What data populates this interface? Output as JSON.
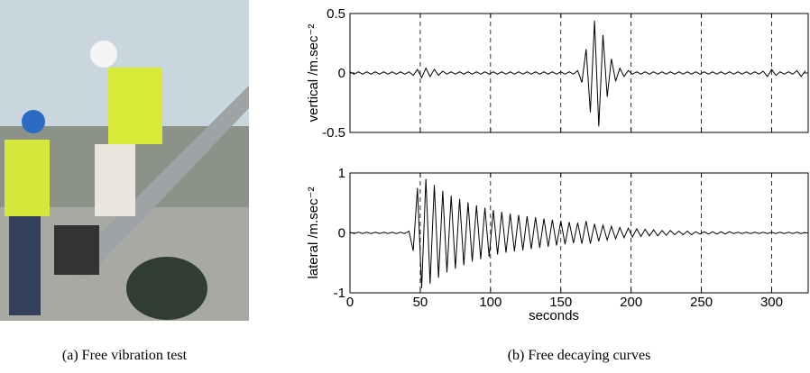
{
  "captions": [
    "(a) Free vibration test",
    "(b) Free decaying curves"
  ],
  "chart_data": [
    {
      "type": "line",
      "ylabel": "vertical /m.sec⁻²",
      "color": "#000000",
      "xlim": [
        0,
        326
      ],
      "ylim": [
        -0.5,
        0.5
      ],
      "yticks": [
        -0.5,
        0,
        0.5
      ],
      "xticks": [
        0,
        50,
        100,
        150,
        200,
        250,
        300
      ],
      "show_xtick_labels": false,
      "grid": true,
      "x": [
        0,
        3,
        6,
        9,
        12,
        15,
        18,
        21,
        24,
        27,
        30,
        33,
        36,
        39,
        42,
        45,
        48,
        51,
        54,
        57,
        60,
        63,
        66,
        69,
        72,
        75,
        78,
        81,
        84,
        87,
        90,
        93,
        96,
        99,
        102,
        105,
        108,
        111,
        114,
        117,
        120,
        123,
        126,
        129,
        132,
        135,
        138,
        141,
        144,
        147,
        150,
        153,
        156,
        159,
        162,
        165,
        168,
        171,
        174,
        177,
        180,
        183,
        186,
        189,
        192,
        195,
        198,
        201,
        204,
        207,
        210,
        213,
        216,
        219,
        222,
        225,
        228,
        231,
        234,
        237,
        240,
        243,
        246,
        249,
        252,
        255,
        258,
        261,
        264,
        267,
        270,
        273,
        276,
        279,
        282,
        285,
        288,
        291,
        294,
        297,
        300,
        303,
        306,
        309,
        312,
        315,
        318,
        321,
        324
      ],
      "values": [
        0.01,
        -0.01,
        0.01,
        -0.01,
        0.01,
        -0.01,
        0.01,
        -0.01,
        0.01,
        -0.01,
        0.01,
        -0.01,
        0.01,
        -0.01,
        0.01,
        -0.02,
        0.03,
        -0.04,
        0.04,
        -0.03,
        0.03,
        -0.02,
        0.015,
        -0.01,
        0.01,
        -0.01,
        0.01,
        -0.01,
        0.01,
        -0.01,
        0.01,
        -0.01,
        0.01,
        -0.01,
        0.01,
        -0.01,
        0.01,
        -0.01,
        0.01,
        -0.01,
        0.01,
        -0.01,
        0.01,
        -0.01,
        0.01,
        -0.01,
        0.01,
        -0.01,
        0.01,
        -0.01,
        0.01,
        -0.01,
        0.01,
        -0.01,
        0.02,
        -0.08,
        0.2,
        -0.33,
        0.44,
        -0.45,
        0.32,
        -0.2,
        0.12,
        -0.07,
        0.04,
        -0.03,
        0.02,
        -0.01,
        0.01,
        -0.01,
        0.01,
        -0.01,
        0.01,
        -0.01,
        0.01,
        -0.01,
        0.01,
        -0.01,
        0.01,
        -0.01,
        0.01,
        -0.01,
        0.01,
        -0.01,
        0.01,
        -0.01,
        0.01,
        -0.01,
        0.01,
        -0.01,
        0.01,
        -0.01,
        0.01,
        -0.01,
        0.01,
        -0.01,
        0.01,
        -0.01,
        0.015,
        -0.03,
        0.03,
        -0.02,
        0.01,
        -0.01,
        0.01,
        -0.01,
        0.02,
        -0.03,
        0.02
      ]
    },
    {
      "type": "line",
      "ylabel": "lateral /m.sec⁻²",
      "xlabel": "seconds",
      "color": "#000000",
      "xlim": [
        0,
        326
      ],
      "ylim": [
        -1,
        1
      ],
      "yticks": [
        -1,
        0,
        1
      ],
      "xticks": [
        0,
        50,
        100,
        150,
        200,
        250,
        300
      ],
      "show_xtick_labels": true,
      "grid": true,
      "x": [
        0,
        3,
        6,
        9,
        12,
        15,
        18,
        21,
        24,
        27,
        30,
        33,
        36,
        39,
        42,
        45,
        48,
        51,
        54,
        57,
        60,
        63,
        66,
        69,
        72,
        75,
        78,
        81,
        84,
        87,
        90,
        93,
        96,
        99,
        102,
        105,
        108,
        111,
        114,
        117,
        120,
        123,
        126,
        129,
        132,
        135,
        138,
        141,
        144,
        147,
        150,
        153,
        156,
        159,
        162,
        165,
        168,
        171,
        174,
        177,
        180,
        183,
        186,
        189,
        192,
        195,
        198,
        201,
        204,
        207,
        210,
        213,
        216,
        219,
        222,
        225,
        228,
        231,
        234,
        237,
        240,
        243,
        246,
        249,
        252,
        255,
        258,
        261,
        264,
        267,
        270,
        273,
        276,
        279,
        282,
        285,
        288,
        291,
        294,
        297,
        300,
        303,
        306,
        309,
        312,
        315,
        318,
        321,
        324
      ],
      "values": [
        0.01,
        -0.01,
        0.01,
        -0.01,
        0.01,
        -0.01,
        0.01,
        -0.01,
        0.01,
        -0.01,
        0.01,
        -0.01,
        0.01,
        -0.01,
        0.03,
        -0.3,
        0.75,
        -0.92,
        0.9,
        -0.85,
        0.8,
        -0.75,
        0.7,
        -0.66,
        0.62,
        -0.6,
        0.57,
        -0.54,
        0.51,
        -0.48,
        0.46,
        -0.44,
        0.42,
        -0.4,
        0.38,
        -0.36,
        0.35,
        -0.33,
        0.32,
        -0.31,
        0.3,
        -0.29,
        0.28,
        -0.27,
        0.26,
        -0.25,
        0.24,
        -0.23,
        0.22,
        -0.21,
        0.2,
        -0.19,
        0.18,
        -0.17,
        0.17,
        -0.18,
        0.2,
        -0.18,
        0.15,
        -0.14,
        0.13,
        -0.12,
        0.11,
        -0.1,
        0.09,
        -0.08,
        0.08,
        -0.07,
        0.07,
        -0.06,
        0.06,
        -0.05,
        0.05,
        -0.05,
        0.04,
        -0.04,
        0.04,
        -0.03,
        0.03,
        -0.03,
        0.03,
        -0.03,
        0.02,
        -0.02,
        0.02,
        -0.02,
        0.02,
        -0.02,
        0.02,
        -0.02,
        0.02,
        -0.01,
        0.01,
        -0.01,
        0.01,
        -0.01,
        0.01,
        -0.01,
        0.01,
        -0.01,
        0.01,
        -0.01,
        0.01,
        -0.01,
        0.01,
        -0.01,
        0.01,
        -0.01,
        0.01
      ]
    }
  ]
}
